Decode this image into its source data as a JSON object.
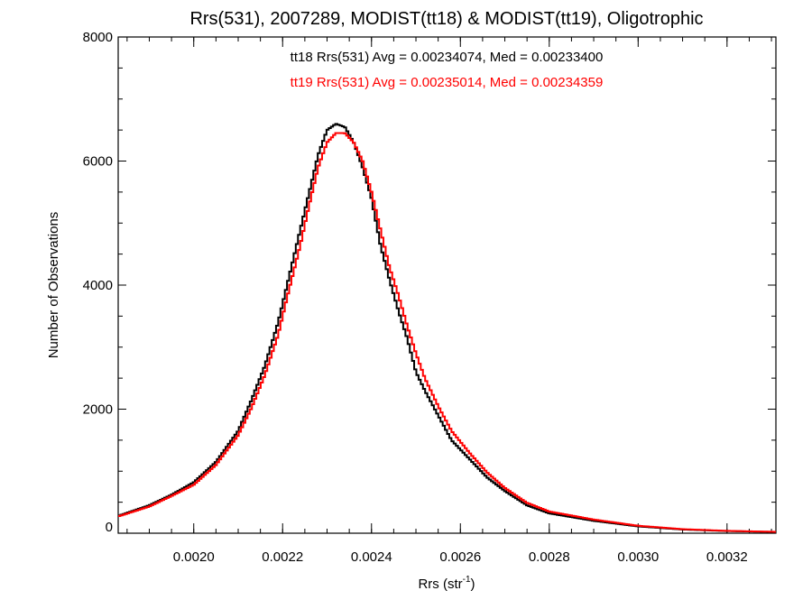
{
  "chart_data": {
    "type": "line",
    "title": "Rrs(531), 2007289, MODIST(tt18) & MODIST(tt19), Oligotrophic",
    "xlabel_main": "Rrs (str",
    "xlabel_sup": "-1",
    "xlabel_close": ")",
    "ylabel": "Number of Observations",
    "xlim": [
      0.00183,
      0.00331
    ],
    "ylim": [
      0,
      8000
    ],
    "x_ticks": [
      0.002,
      0.0022,
      0.0024,
      0.0026,
      0.0028,
      0.003,
      0.0032
    ],
    "x_tick_labels": [
      "0.0020",
      "0.0022",
      "0.0024",
      "0.0026",
      "0.0028",
      "0.0030",
      "0.0032"
    ],
    "y_ticks": [
      0,
      2000,
      4000,
      6000,
      8000
    ],
    "y_tick_labels": [
      "0",
      "2000",
      "4000",
      "6000",
      "8000"
    ],
    "grid": false,
    "annotations": [
      {
        "text": "tt18 Rrs(531) Avg = 0.00234074, Med = 0.00233400",
        "color": "#000000"
      },
      {
        "text": "tt19 Rrs(531) Avg = 0.00235014, Med = 0.00234359",
        "color": "#ff0000"
      }
    ],
    "series": [
      {
        "color": "#000000",
        "x": [
          0.00183,
          0.0019,
          0.00195,
          0.002,
          0.00205,
          0.0021,
          0.00213,
          0.00216,
          0.00219,
          0.00221,
          0.00224,
          0.00226,
          0.00228,
          0.0023,
          0.00232,
          0.00234,
          0.00236,
          0.00238,
          0.0024,
          0.00242,
          0.00244,
          0.00246,
          0.00248,
          0.0025,
          0.00252,
          0.00255,
          0.00258,
          0.00262,
          0.00266,
          0.0027,
          0.00275,
          0.0028,
          0.0029,
          0.003,
          0.0031,
          0.0032,
          0.00331
        ],
        "y": [
          280,
          450,
          620,
          820,
          1150,
          1650,
          2150,
          2700,
          3400,
          4000,
          4900,
          5500,
          6100,
          6500,
          6600,
          6550,
          6300,
          5900,
          5400,
          4650,
          4100,
          3600,
          3150,
          2600,
          2300,
          1900,
          1500,
          1200,
          900,
          680,
          450,
          320,
          200,
          110,
          60,
          35,
          20
        ]
      },
      {
        "color": "#ff0000",
        "x": [
          0.00183,
          0.0019,
          0.00195,
          0.002,
          0.00205,
          0.0021,
          0.00213,
          0.00216,
          0.00219,
          0.00221,
          0.00224,
          0.00226,
          0.00228,
          0.0023,
          0.00232,
          0.00234,
          0.00236,
          0.00238,
          0.0024,
          0.00242,
          0.00244,
          0.00246,
          0.00248,
          0.0025,
          0.00252,
          0.00255,
          0.00258,
          0.00262,
          0.00266,
          0.0027,
          0.00275,
          0.0028,
          0.0029,
          0.003,
          0.0031,
          0.0032,
          0.00331
        ],
        "y": [
          270,
          430,
          600,
          780,
          1100,
          1580,
          2020,
          2550,
          3200,
          3800,
          4650,
          5300,
          5900,
          6300,
          6450,
          6450,
          6300,
          6000,
          5500,
          4900,
          4300,
          3850,
          3350,
          2900,
          2500,
          2050,
          1650,
          1300,
          980,
          730,
          490,
          350,
          220,
          120,
          65,
          38,
          22
        ]
      }
    ]
  }
}
